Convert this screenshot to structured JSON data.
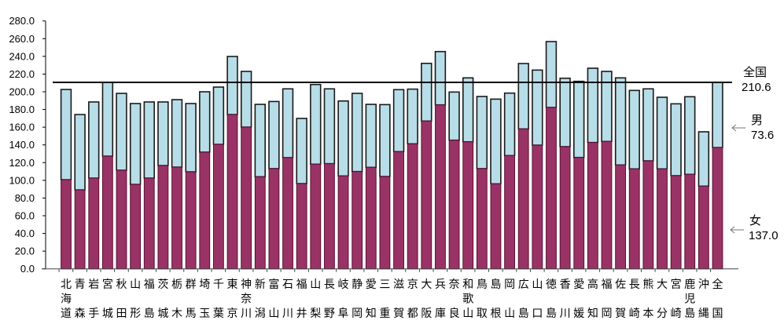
{
  "chart_data": {
    "type": "bar",
    "stacked": true,
    "title": "",
    "xlabel": "",
    "ylabel": "",
    "ylim": [
      0,
      280
    ],
    "yticks": [
      "0.0",
      "20.0",
      "40.0",
      "60.0",
      "80.0",
      "100.0",
      "120.0",
      "140.0",
      "160.0",
      "180.0",
      "200.0",
      "220.0",
      "240.0",
      "260.0",
      "280.0"
    ],
    "grid": false,
    "categories": [
      "北海道",
      "青森",
      "岩手",
      "宮城",
      "秋田",
      "山形",
      "福島",
      "茨城",
      "栃木",
      "群馬",
      "埼玉",
      "千葉",
      "東京",
      "神奈川",
      "新潟",
      "富山",
      "石川",
      "福井",
      "山梨",
      "長野",
      "岐阜",
      "静岡",
      "愛知",
      "三重",
      "滋賀",
      "京都",
      "大阪",
      "兵庫",
      "奈良",
      "和歌山",
      "鳥取",
      "島根",
      "岡山",
      "広島",
      "山口",
      "徳島",
      "香川",
      "愛媛",
      "高知",
      "福岡",
      "佐賀",
      "長崎",
      "熊本",
      "大分",
      "宮崎",
      "鹿児島",
      "沖縄",
      "全国"
    ],
    "series": [
      {
        "name": "女",
        "color": "#993366",
        "values": [
          100.7,
          89.2,
          102.5,
          127.3,
          111.4,
          95.4,
          102.5,
          116.7,
          114.9,
          109.6,
          131.8,
          140.6,
          174.3,
          160.1,
          104.0,
          113.2,
          125.6,
          96.3,
          118.2,
          118.8,
          104.9,
          109.9,
          114.6,
          104.3,
          132.4,
          141.2,
          166.9,
          185.2,
          145.3,
          143.5,
          113.2,
          96.0,
          127.9,
          158.0,
          139.7,
          182.3,
          138.0,
          125.8,
          142.7,
          143.9,
          117.3,
          112.9,
          122.0,
          112.9,
          105.2,
          106.7,
          93.4,
          137.0
        ]
      },
      {
        "name": "男",
        "color": "#b7dde8",
        "values": [
          101.9,
          85.1,
          86.0,
          83.3,
          86.8,
          91.3,
          86.0,
          71.8,
          76.2,
          77.1,
          68.2,
          64.7,
          65.6,
          62.9,
          81.8,
          75.8,
          77.7,
          73.6,
          90.0,
          84.5,
          84.7,
          88.3,
          71.2,
          81.2,
          70.0,
          61.8,
          65.2,
          60.2,
          54.4,
          72.2,
          81.5,
          95.7,
          70.6,
          73.9,
          84.8,
          74.4,
          77.3,
          86.0,
          83.9,
          79.1,
          98.4,
          88.6,
          81.3,
          80.9,
          81.2,
          87.7,
          61.4,
          73.6
        ]
      }
    ],
    "reference_line": {
      "label": "全国",
      "value": 210.6,
      "value_label": "210.6"
    },
    "annotations": [
      {
        "label": "男",
        "value_label": "73.6"
      },
      {
        "label": "女",
        "value_label": "137.0"
      }
    ]
  }
}
